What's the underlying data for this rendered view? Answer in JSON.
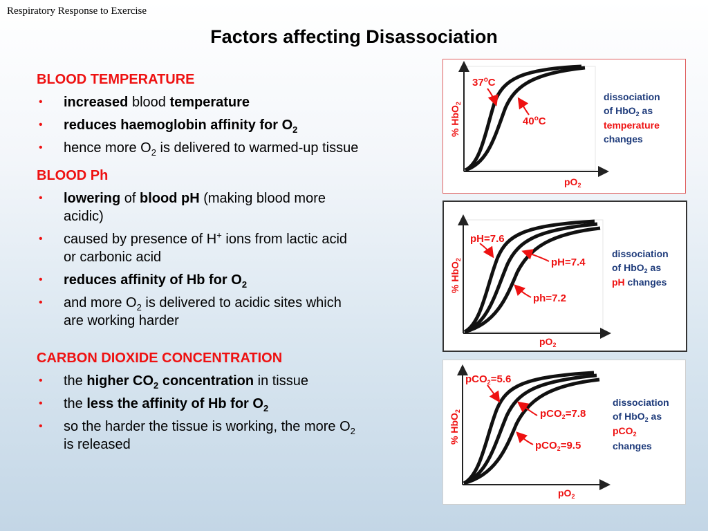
{
  "header": {
    "title": "Respiratory Response to Exercise"
  },
  "slide": {
    "title": "Factors affecting Disassociation"
  },
  "sections": {
    "temperature": {
      "heading": "BLOOD TEMPERATURE",
      "b1": {
        "bold1": "increased",
        "text1": " blood ",
        "bold2": "temperature"
      },
      "b2": {
        "bold": "reduces haemoglobin affinity for O",
        "sub": "2"
      },
      "b3": {
        "text1": "hence more O",
        "sub": "2",
        "text2": " is delivered to warmed-up tissue"
      }
    },
    "ph": {
      "heading": "BLOOD Ph",
      "b1": {
        "bold1": "lowering",
        "text1": " of ",
        "bold2": "blood pH",
        "text2": " (making blood more acidic)"
      },
      "b2": {
        "text1": "caused by presence of H",
        "sup": "+",
        "text2": " ions from lactic acid or carbonic acid"
      },
      "b3": {
        "bold": "reduces affinity of Hb for O",
        "sub": "2"
      },
      "b4": {
        "text1": "and more O",
        "sub": "2",
        "text2": " is delivered to acidic sites which are working harder"
      }
    },
    "co2": {
      "heading": "CARBON DIOXIDE CONCENTRATION",
      "b1": {
        "text1": "the ",
        "bold1": "higher CO",
        "sub": "2",
        "bold2": " concentration",
        "text2": " in tissue"
      },
      "b2": {
        "text1": "the ",
        "bold": "less the affinity of Hb for O",
        "sub": "2"
      },
      "b3": {
        "text1": "so the harder the tissue is working, the more O",
        "sub": "2",
        "text2": " is released"
      }
    }
  },
  "bullet_char": "•",
  "graphs": {
    "temperature": {
      "y_label": "% HbO",
      "y_sub": "2",
      "x_label": "pO",
      "x_sub": "2",
      "curve1": "37",
      "curve2": "40",
      "degree": "o",
      "unit": "C",
      "caption": {
        "l1": "dissociation",
        "l2a": "of HbO",
        "l2sub": "2",
        "l2b": " as",
        "l3": "temperature",
        "l4": "changes"
      }
    },
    "ph": {
      "y_label": "% HbO",
      "y_sub": "2",
      "x_label": "pO",
      "x_sub": "2",
      "curve1": "pH=7.6",
      "curve2": "pH=7.4",
      "curve3": "ph=7.2",
      "caption": {
        "l1": "dissociation",
        "l2": "of HbO",
        "l2sub": "2",
        "l2b": " as",
        "l3a": "pH",
        "l3b": " changes"
      }
    },
    "co2": {
      "y_label": "% HbO",
      "y_sub": "2",
      "x_label": "pO",
      "x_sub": "2",
      "c1a": "pCO",
      "c1sub": "2",
      "c1b": "=5.6",
      "c2a": "pCO",
      "c2sub": "2",
      "c2b": "=7.8",
      "c3a": "pCO",
      "c3sub": "2",
      "c3b": "=9.5",
      "caption": {
        "l1": "dissociation",
        "l2a": "of HbO",
        "l2sub": "2",
        "l2b": " as",
        "l3a": "pCO",
        "l3sub": "2",
        "l4": "changes"
      }
    }
  },
  "colors": {
    "accent_red": "#ee1111",
    "caption_navy": "#1d3a7a"
  }
}
